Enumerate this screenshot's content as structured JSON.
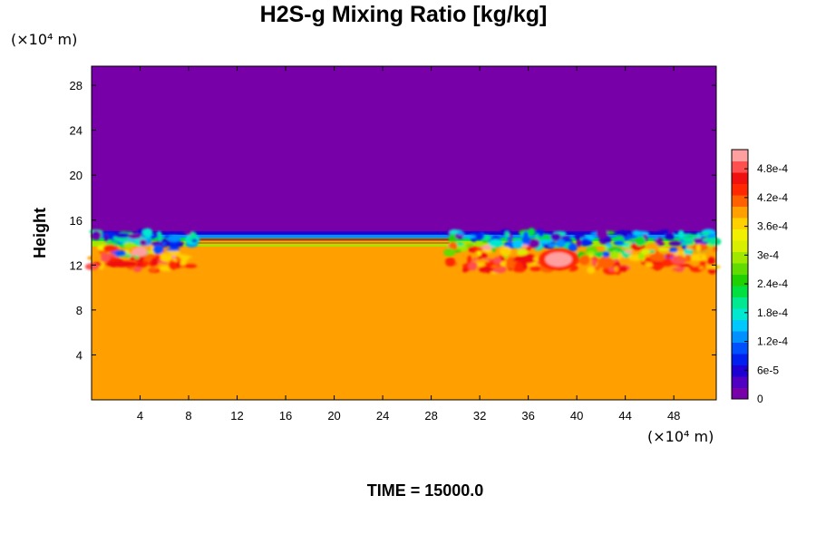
{
  "chart_data": {
    "type": "heatmap",
    "title": "H2S-g Mixing Ratio [kg/kg]",
    "ylabel": "Height",
    "xlabel": "",
    "x_unit": "(×10⁴ m)",
    "y_unit": "(×10⁴ m)",
    "xlim": [
      0,
      51.5
    ],
    "ylim": [
      0,
      29.7
    ],
    "x_ticks": [
      4,
      8,
      12,
      16,
      20,
      24,
      28,
      32,
      36,
      40,
      44,
      48
    ],
    "y_ticks": [
      4,
      8,
      12,
      16,
      20,
      24,
      28
    ],
    "value_range": [
      0,
      0.00052
    ],
    "regions": {
      "upper_value": 0,
      "lower_value": 0.00039,
      "interface_height_approx": 14,
      "mixed_layer_band": [
        11.5,
        15
      ],
      "turbulent_zones": [
        [
          0,
          8.5
        ],
        [
          29.5,
          51.5
        ]
      ],
      "max_value_location": [
        38.5,
        12.5
      ]
    },
    "colorbar": {
      "min": 0,
      "max": 0.00052,
      "tick_values": [
        0,
        6e-05,
        0.00012,
        0.00018,
        0.00024,
        0.0003,
        0.00036,
        0.00042,
        0.00048
      ],
      "tick_labels": [
        "0",
        "6e-5",
        "1.2e-4",
        "1.8e-4",
        "2.4e-4",
        "3e-4",
        "3.6e-4",
        "4.2e-4",
        "4.8e-4"
      ],
      "colors": [
        "#7800a8",
        "#5000c0",
        "#1e00d2",
        "#0020f0",
        "#0050ff",
        "#0090ff",
        "#00c8ff",
        "#00e8d0",
        "#00e890",
        "#00e040",
        "#20d000",
        "#60dc00",
        "#a0e800",
        "#d8f000",
        "#f0f000",
        "#ffd000",
        "#ffa000",
        "#ff6000",
        "#ff2800",
        "#f01010",
        "#ff5050",
        "#ffa0a0"
      ]
    },
    "time_label": "TIME = 15000.0"
  }
}
